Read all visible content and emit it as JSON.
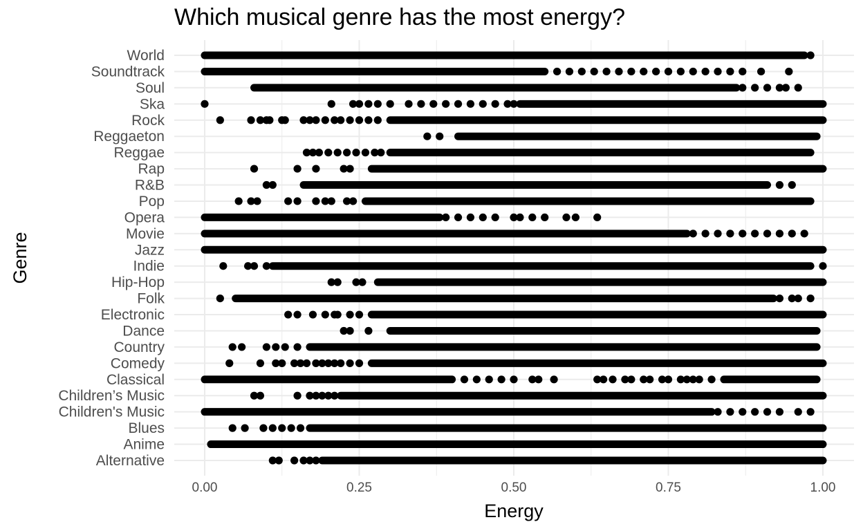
{
  "chart_data": {
    "type": "scatter",
    "title": "Which musical genre has the most energy?",
    "xlabel": "Energy",
    "ylabel": "Genre",
    "xlim": [
      0,
      1
    ],
    "x_ticks": [
      "0.00",
      "0.25",
      "0.50",
      "0.75",
      "1.00"
    ],
    "x_tick_values": [
      0,
      0.25,
      0.5,
      0.75,
      1.0
    ],
    "grid": true,
    "legend": "none",
    "point_color": "#000000",
    "categories": [
      "Alternative",
      "Anime",
      "Blues",
      "Children's Music",
      "Children’s Music",
      "Classical",
      "Comedy",
      "Country",
      "Dance",
      "Electronic",
      "Folk",
      "Hip-Hop",
      "Indie",
      "Jazz",
      "Movie",
      "Opera",
      "Pop",
      "R&B",
      "Rap",
      "Reggae",
      "Reggaeton",
      "Rock",
      "Ska",
      "Soul",
      "Soundtrack",
      "World"
    ],
    "series": [
      {
        "category": "Alternative",
        "dense": [
          [
            0.19,
            1.0
          ]
        ],
        "points": [
          0.11,
          0.12,
          0.145,
          0.16,
          0.17,
          0.18
        ]
      },
      {
        "category": "Anime",
        "dense": [
          [
            0.01,
            1.0
          ]
        ],
        "points": []
      },
      {
        "category": "Blues",
        "dense": [
          [
            0.17,
            1.0
          ]
        ],
        "points": [
          0.045,
          0.065,
          0.095,
          0.11,
          0.125,
          0.14,
          0.155
        ]
      },
      {
        "category": "Children's Music",
        "dense": [
          [
            0.0,
            0.82
          ]
        ],
        "points": [
          0.83,
          0.85,
          0.87,
          0.89,
          0.91,
          0.93,
          0.96,
          0.98
        ]
      },
      {
        "category": "Children’s Music",
        "dense": [
          [
            0.22,
            1.0
          ]
        ],
        "points": [
          0.08,
          0.09,
          0.15,
          0.17,
          0.18,
          0.19,
          0.2,
          0.21
        ]
      },
      {
        "category": "Classical",
        "dense": [
          [
            0.0,
            0.4
          ],
          [
            0.84,
            0.99
          ]
        ],
        "points": [
          0.42,
          0.44,
          0.46,
          0.48,
          0.5,
          0.53,
          0.54,
          0.565,
          0.635,
          0.645,
          0.66,
          0.68,
          0.69,
          0.71,
          0.72,
          0.74,
          0.75,
          0.77,
          0.78,
          0.79,
          0.8,
          0.82
        ]
      },
      {
        "category": "Comedy",
        "dense": [
          [
            0.27,
            1.0
          ]
        ],
        "points": [
          0.04,
          0.09,
          0.115,
          0.125,
          0.145,
          0.155,
          0.165,
          0.18,
          0.19,
          0.2,
          0.21,
          0.22,
          0.235,
          0.25
        ]
      },
      {
        "category": "Country",
        "dense": [
          [
            0.17,
            0.99
          ]
        ],
        "points": [
          0.045,
          0.06,
          0.1,
          0.115,
          0.13,
          0.15
        ]
      },
      {
        "category": "Dance",
        "dense": [
          [
            0.3,
            0.99
          ]
        ],
        "points": [
          0.225,
          0.235,
          0.265
        ]
      },
      {
        "category": "Electronic",
        "dense": [
          [
            0.27,
            1.0
          ]
        ],
        "points": [
          0.135,
          0.15,
          0.175,
          0.195,
          0.21,
          0.215,
          0.235,
          0.25
        ]
      },
      {
        "category": "Folk",
        "dense": [
          [
            0.05,
            0.92
          ]
        ],
        "points": [
          0.025,
          0.93,
          0.95,
          0.96,
          0.98
        ]
      },
      {
        "category": "Hip-Hop",
        "dense": [
          [
            0.28,
            1.0
          ]
        ],
        "points": [
          0.205,
          0.215,
          0.245,
          0.255
        ]
      },
      {
        "category": "Indie",
        "dense": [
          [
            0.11,
            0.98
          ]
        ],
        "points": [
          0.03,
          0.07,
          0.08,
          0.1,
          1.0
        ]
      },
      {
        "category": "Jazz",
        "dense": [
          [
            0.0,
            1.0
          ]
        ],
        "points": []
      },
      {
        "category": "Movie",
        "dense": [
          [
            0.0,
            0.78
          ]
        ],
        "points": [
          0.79,
          0.81,
          0.83,
          0.85,
          0.87,
          0.89,
          0.91,
          0.93,
          0.95,
          0.97
        ]
      },
      {
        "category": "Opera",
        "dense": [
          [
            0.0,
            0.38
          ]
        ],
        "points": [
          0.39,
          0.41,
          0.43,
          0.45,
          0.47,
          0.5,
          0.51,
          0.53,
          0.55,
          0.585,
          0.6,
          0.635
        ]
      },
      {
        "category": "Pop",
        "dense": [
          [
            0.26,
            0.98
          ]
        ],
        "points": [
          0.055,
          0.075,
          0.085,
          0.135,
          0.15,
          0.18,
          0.195,
          0.205,
          0.23,
          0.24
        ]
      },
      {
        "category": "R&B",
        "dense": [
          [
            0.16,
            0.91
          ]
        ],
        "points": [
          0.1,
          0.11,
          0.93,
          0.95
        ]
      },
      {
        "category": "Rap",
        "dense": [
          [
            0.27,
            1.0
          ]
        ],
        "points": [
          0.08,
          0.15,
          0.18,
          0.225,
          0.235
        ]
      },
      {
        "category": "Reggae",
        "dense": [
          [
            0.3,
            0.98
          ]
        ],
        "points": [
          0.165,
          0.175,
          0.185,
          0.2,
          0.215,
          0.23,
          0.245,
          0.26,
          0.275,
          0.285
        ]
      },
      {
        "category": "Reggaeton",
        "dense": [
          [
            0.41,
            0.99
          ]
        ],
        "points": [
          0.36,
          0.38
        ]
      },
      {
        "category": "Rock",
        "dense": [
          [
            0.3,
            1.0
          ]
        ],
        "points": [
          0.025,
          0.075,
          0.09,
          0.1,
          0.105,
          0.125,
          0.13,
          0.16,
          0.17,
          0.18,
          0.195,
          0.21,
          0.22,
          0.235,
          0.25,
          0.265,
          0.28
        ]
      },
      {
        "category": "Ska",
        "dense": [
          [
            0.51,
            1.0
          ]
        ],
        "points": [
          0.0,
          0.205,
          0.24,
          0.25,
          0.265,
          0.28,
          0.3,
          0.33,
          0.35,
          0.37,
          0.39,
          0.41,
          0.43,
          0.45,
          0.47,
          0.49,
          0.5
        ]
      },
      {
        "category": "Soul",
        "dense": [
          [
            0.08,
            0.86
          ]
        ],
        "points": [
          0.87,
          0.89,
          0.91,
          0.93,
          0.94,
          0.96
        ]
      },
      {
        "category": "Soundtrack",
        "dense": [
          [
            0.0,
            0.55
          ]
        ],
        "points": [
          0.57,
          0.59,
          0.61,
          0.63,
          0.65,
          0.67,
          0.69,
          0.71,
          0.73,
          0.75,
          0.77,
          0.79,
          0.81,
          0.83,
          0.85,
          0.87,
          0.9,
          0.945
        ]
      },
      {
        "category": "World",
        "dense": [
          [
            0.0,
            0.97
          ]
        ],
        "points": [
          0.98
        ]
      }
    ]
  }
}
